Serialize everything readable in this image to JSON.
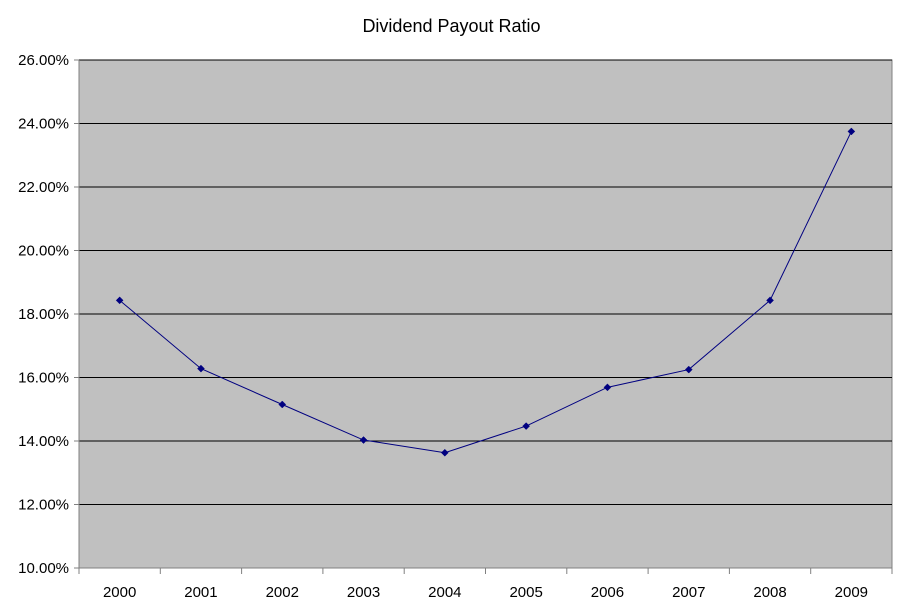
{
  "chart_data": {
    "type": "line",
    "title": "Dividend Payout Ratio",
    "xlabel": "",
    "ylabel": "",
    "categories": [
      "2000",
      "2001",
      "2002",
      "2003",
      "2004",
      "2005",
      "2006",
      "2007",
      "2008",
      "2009"
    ],
    "series": [
      {
        "values": [
          18.43,
          16.28,
          15.15,
          14.03,
          13.63,
          14.47,
          15.69,
          16.25,
          18.43,
          23.75
        ],
        "color": "#000080"
      }
    ],
    "ylim": [
      10,
      26
    ],
    "y_ticks": [
      10,
      12,
      14,
      16,
      18,
      20,
      22,
      24,
      26
    ],
    "y_tick_labels": [
      "10.00%",
      "12.00%",
      "14.00%",
      "16.00%",
      "18.00%",
      "20.00%",
      "22.00%",
      "24.00%",
      "26.00%"
    ],
    "grid": true,
    "legend": "none",
    "plot_background": "#c0c0c0"
  }
}
